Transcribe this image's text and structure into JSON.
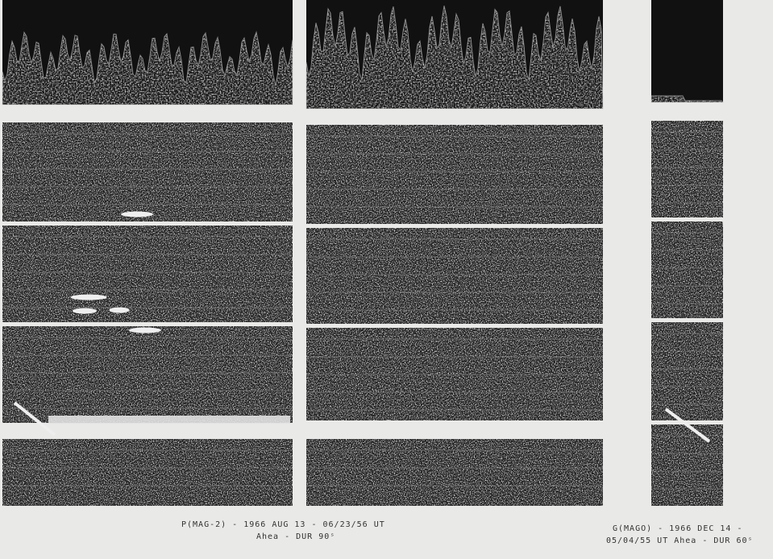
{
  "captions": {
    "left": {
      "line1": "P(MAG-2) - 1966   AUG 13 - 06/23/56 UT",
      "line2": "Ahea - DUR 90ˢ"
    },
    "right": {
      "line1": "G(MAGO) - 1966 DEC 14 -",
      "line2": "05/04/55 UT  Ahea - DUR 60ˢ"
    }
  }
}
